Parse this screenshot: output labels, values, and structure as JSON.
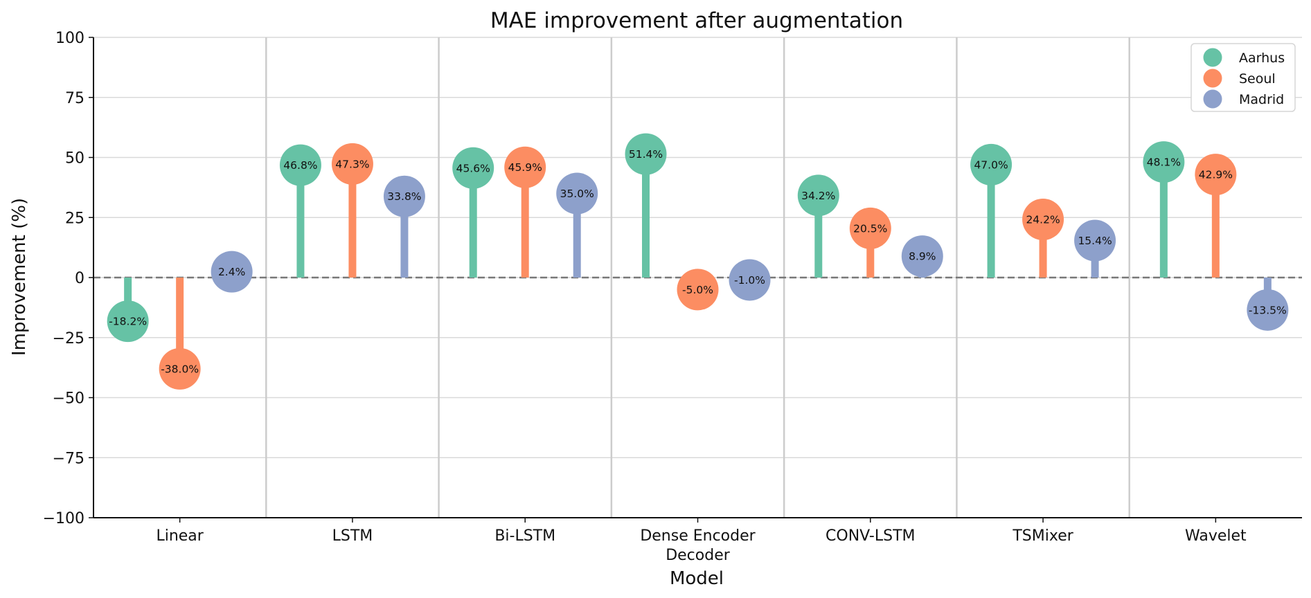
{
  "chart_data": {
    "type": "lollipop",
    "title": "MAE improvement after augmentation",
    "xlabel": "Model",
    "ylabel": "Improvement (%)",
    "ylim": [
      -100,
      100
    ],
    "yticks": [
      -100,
      -75,
      -50,
      -25,
      0,
      25,
      50,
      75,
      100
    ],
    "ytick_labels": [
      "−100",
      "−75",
      "−50",
      "−25",
      "0",
      "25",
      "50",
      "75",
      "100"
    ],
    "categories": [
      "Linear",
      "LSTM",
      "Bi-LSTM",
      "Dense Encoder\nDecoder",
      "CONV-LSTM",
      "TSMixer",
      "Wavelet"
    ],
    "series": [
      {
        "name": "Aarhus",
        "color": "#66c2a5",
        "values": [
          -18.2,
          46.8,
          45.6,
          51.4,
          34.2,
          47.0,
          48.1
        ]
      },
      {
        "name": "Seoul",
        "color": "#fc8d62",
        "values": [
          -38.0,
          47.3,
          45.9,
          -5.0,
          20.5,
          24.2,
          42.9
        ]
      },
      {
        "name": "Madrid",
        "color": "#8da0cb",
        "values": [
          2.4,
          33.8,
          35.0,
          -1.0,
          8.9,
          15.4,
          -13.5
        ]
      }
    ],
    "data_labels": [
      [
        "-18.2%",
        "46.8%",
        "45.6%",
        "51.4%",
        "34.2%",
        "47.0%",
        "48.1%"
      ],
      [
        "-38.0%",
        "47.3%",
        "45.9%",
        "-5.0%",
        "20.5%",
        "24.2%",
        "42.9%"
      ],
      [
        "2.4%",
        "33.8%",
        "35.0%",
        "-1.0%",
        "8.9%",
        "15.4%",
        "-13.5%"
      ]
    ],
    "zero_line": "dashed",
    "grid": "y",
    "legend_position": "top-right"
  }
}
